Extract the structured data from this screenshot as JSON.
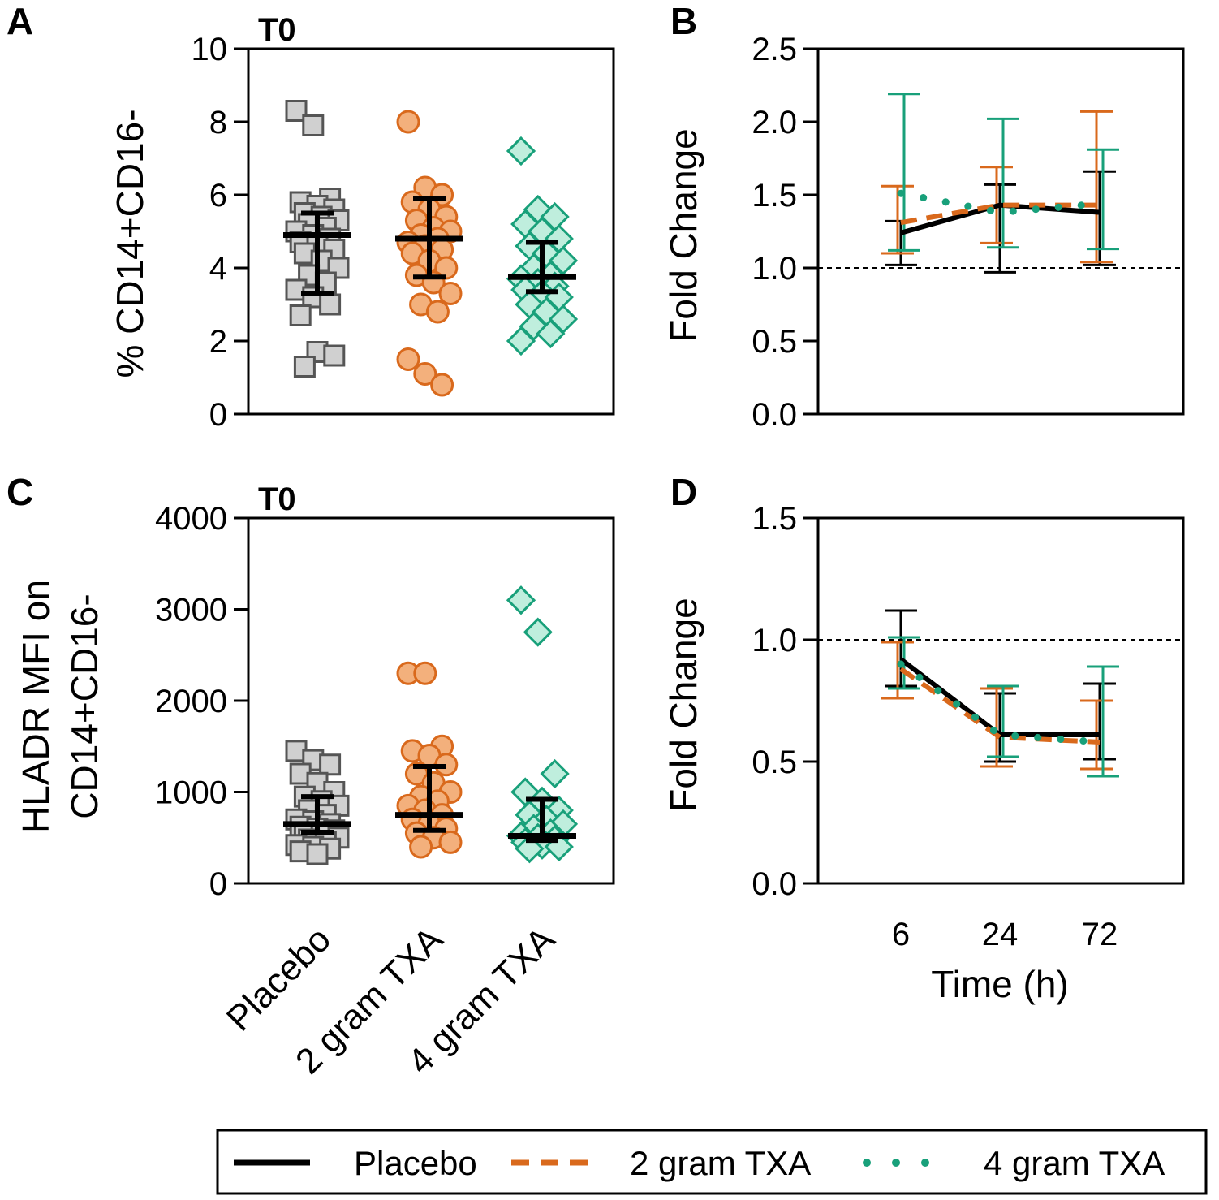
{
  "chart_data": [
    {
      "panel": "A",
      "type": "scatter",
      "title": "T0",
      "xlabel": "",
      "ylabel": "% CD14+CD16-",
      "ylim": [
        0,
        10
      ],
      "yticks": [
        "0",
        "2",
        "4",
        "6",
        "8",
        "10"
      ],
      "categories": [
        "Placebo",
        "2 gram TXA",
        "4 gram TXA"
      ],
      "series": [
        {
          "name": "Placebo",
          "marker": "square",
          "values": [
            8.3,
            7.9,
            5.9,
            5.8,
            5.7,
            5.6,
            5.5,
            5.4,
            5.3,
            5.2,
            5.1,
            5.0,
            4.9,
            4.8,
            4.7,
            4.6,
            4.5,
            4.4,
            4.2,
            4.0,
            3.8,
            3.6,
            3.4,
            3.2,
            3.0,
            2.7,
            1.7,
            1.6,
            1.3
          ],
          "median": 4.9,
          "q1": 3.3,
          "q3": 5.5
        },
        {
          "name": "2 gram TXA",
          "marker": "circle",
          "values": [
            8.0,
            6.2,
            6.0,
            5.8,
            5.6,
            5.4,
            5.3,
            5.1,
            5.0,
            4.9,
            4.8,
            4.7,
            4.6,
            4.5,
            4.4,
            4.2,
            4.0,
            3.8,
            3.6,
            3.3,
            3.0,
            2.8,
            1.5,
            1.1,
            0.8
          ],
          "median": 4.8,
          "q1": 3.75,
          "q3": 5.9
        },
        {
          "name": "4 gram TXA",
          "marker": "diamond",
          "values": [
            7.2,
            5.6,
            5.4,
            5.2,
            5.0,
            4.8,
            4.6,
            4.4,
            4.2,
            4.0,
            3.8,
            3.7,
            3.6,
            3.5,
            3.4,
            3.3,
            3.2,
            3.0,
            2.8,
            2.6,
            2.4,
            2.2,
            2.0
          ],
          "median": 3.75,
          "q1": 3.35,
          "q3": 4.7
        }
      ]
    },
    {
      "panel": "B",
      "type": "line",
      "xlabel": "",
      "ylabel": "Fold Change",
      "ylim": [
        0,
        2.5
      ],
      "yticks": [
        "0.0",
        "0.5",
        "1.0",
        "1.5",
        "2.0",
        "2.5"
      ],
      "x": [
        "6",
        "24",
        "72"
      ],
      "reference_line": 1.0,
      "series": [
        {
          "name": "Placebo",
          "values": [
            1.24,
            1.43,
            1.38
          ],
          "lower": [
            1.02,
            0.97,
            1.02
          ],
          "upper": [
            1.32,
            1.57,
            1.66
          ]
        },
        {
          "name": "2 gram TXA",
          "values": [
            1.31,
            1.43,
            1.43
          ],
          "lower": [
            1.1,
            1.17,
            1.04
          ],
          "upper": [
            1.56,
            1.69,
            2.07
          ]
        },
        {
          "name": "4 gram TXA",
          "values": [
            1.51,
            1.38,
            1.44
          ],
          "lower": [
            1.12,
            1.14,
            1.13
          ],
          "upper": [
            2.19,
            2.02,
            1.81
          ]
        }
      ]
    },
    {
      "panel": "C",
      "type": "scatter",
      "title": "T0",
      "xlabel": "",
      "ylabel_lines": [
        "HLADR MFI on",
        "CD14+CD16-"
      ],
      "ylim": [
        0,
        4000
      ],
      "yticks": [
        "0",
        "1000",
        "2000",
        "3000",
        "4000"
      ],
      "categories": [
        "Placebo",
        "2 gram TXA",
        "4 gram TXA"
      ],
      "series": [
        {
          "name": "Placebo",
          "marker": "square",
          "values": [
            1450,
            1350,
            1300,
            1200,
            1100,
            1000,
            950,
            900,
            850,
            800,
            750,
            700,
            680,
            650,
            620,
            600,
            580,
            550,
            520,
            500,
            480,
            450,
            420,
            400,
            380,
            350,
            320
          ],
          "median": 650,
          "q1": 560,
          "q3": 950
        },
        {
          "name": "2 gram TXA",
          "marker": "circle",
          "values": [
            2300,
            2300,
            1500,
            1450,
            1400,
            1300,
            1200,
            1100,
            1000,
            950,
            900,
            850,
            800,
            750,
            700,
            650,
            600,
            550,
            500,
            450,
            400
          ],
          "median": 750,
          "q1": 580,
          "q3": 1280
        },
        {
          "name": "4 gram TXA",
          "marker": "diamond",
          "values": [
            3100,
            2750,
            1200,
            1000,
            900,
            800,
            750,
            700,
            650,
            600,
            550,
            520,
            500,
            480,
            450,
            420,
            400,
            380
          ],
          "median": 520,
          "q1": 470,
          "q3": 920
        }
      ]
    },
    {
      "panel": "D",
      "type": "line",
      "xlabel": "Time (h)",
      "ylabel": "Fold Change",
      "ylim": [
        0,
        1.5
      ],
      "yticks": [
        "0.0",
        "0.5",
        "1.0",
        "1.5"
      ],
      "x": [
        "6",
        "24",
        "72"
      ],
      "reference_line": 1.0,
      "series": [
        {
          "name": "Placebo",
          "values": [
            0.92,
            0.61,
            0.61
          ],
          "lower": [
            0.81,
            0.5,
            0.51
          ],
          "upper": [
            1.12,
            0.78,
            0.82
          ]
        },
        {
          "name": "2 gram TXA",
          "values": [
            0.88,
            0.6,
            0.58
          ],
          "lower": [
            0.76,
            0.48,
            0.47
          ],
          "upper": [
            0.99,
            0.8,
            0.75
          ]
        },
        {
          "name": "4 gram TXA",
          "values": [
            0.9,
            0.61,
            0.58
          ],
          "lower": [
            0.8,
            0.52,
            0.44
          ],
          "upper": [
            1.01,
            0.81,
            0.89
          ]
        }
      ]
    }
  ],
  "panel_letters": [
    "A",
    "B",
    "C",
    "D"
  ],
  "legend": {
    "items": [
      {
        "label": "Placebo",
        "style": "solid"
      },
      {
        "label": "2 gram TXA",
        "style": "dashed"
      },
      {
        "label": "4 gram TXA",
        "style": "dotted"
      }
    ]
  },
  "colors": {
    "placebo_line": "#000000",
    "placebo_fill": "#d0d0d0",
    "placebo_stroke": "#555555",
    "txa2": "#d9691c",
    "txa2_fill": "#f3b07c",
    "txa4": "#18a07a",
    "txa4_fill": "#bfeedd",
    "reference": "#000000"
  }
}
